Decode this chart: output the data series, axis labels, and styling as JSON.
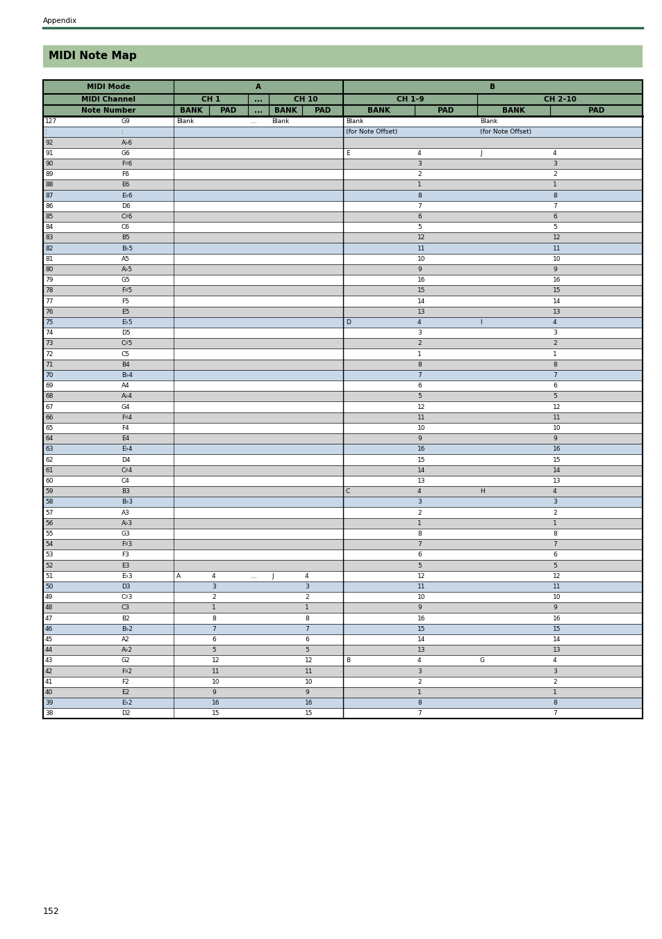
{
  "page_label": "Appendix",
  "section_title": "MIDI Note Map",
  "page_number": "152",
  "header_bg": "#8fad91",
  "title_bg": "#a8c5a0",
  "green_line": "#2e6b4f",
  "row_white": "#ffffff",
  "row_gray": "#d4d4d4",
  "row_blue": "#c8d8e8",
  "rows": [
    {
      "num": "127",
      "note": "G9",
      "ch1_bank": "Blank",
      "ch1_pad": "",
      "dots1": "...",
      "ch10_bank": "Blank",
      "ch10_pad": "",
      "b19_bank": "Blank",
      "b19_pad": "",
      "b210_bank": "Blank",
      "b210_pad": "",
      "bg": "white"
    },
    {
      "num": ":",
      "note": ":",
      "ch1_bank": "",
      "ch1_pad": "",
      "dots1": "",
      "ch10_bank": "",
      "ch10_pad": "",
      "b19_bank": "(for Note Offset)",
      "b19_pad": "",
      "b210_bank": "(for Note Offset)",
      "b210_pad": "",
      "bg": "blue"
    },
    {
      "num": "92",
      "note": "A♭6",
      "ch1_bank": "",
      "ch1_pad": "",
      "dots1": "",
      "ch10_bank": "",
      "ch10_pad": "",
      "b19_bank": "",
      "b19_pad": "",
      "b210_bank": "",
      "b210_pad": "",
      "bg": "gray"
    },
    {
      "num": "91",
      "note": "G6",
      "ch1_bank": "",
      "ch1_pad": "",
      "dots1": "",
      "ch10_bank": "",
      "ch10_pad": "",
      "b19_bank": "E",
      "b19_pad": "4",
      "b210_bank": "J",
      "b210_pad": "4",
      "bg": "white"
    },
    {
      "num": "90",
      "note": "F♯6",
      "ch1_bank": "",
      "ch1_pad": "",
      "dots1": "",
      "ch10_bank": "",
      "ch10_pad": "",
      "b19_bank": "",
      "b19_pad": "3",
      "b210_bank": "",
      "b210_pad": "3",
      "bg": "gray"
    },
    {
      "num": "89",
      "note": "F6",
      "ch1_bank": "",
      "ch1_pad": "",
      "dots1": "",
      "ch10_bank": "",
      "ch10_pad": "",
      "b19_bank": "",
      "b19_pad": "2",
      "b210_bank": "",
      "b210_pad": "2",
      "bg": "white"
    },
    {
      "num": "88",
      "note": "E6",
      "ch1_bank": "",
      "ch1_pad": "",
      "dots1": "",
      "ch10_bank": "",
      "ch10_pad": "",
      "b19_bank": "",
      "b19_pad": "1",
      "b210_bank": "",
      "b210_pad": "1",
      "bg": "gray"
    },
    {
      "num": "87",
      "note": "E♭6",
      "ch1_bank": "",
      "ch1_pad": "",
      "dots1": "",
      "ch10_bank": "",
      "ch10_pad": "",
      "b19_bank": "",
      "b19_pad": "8",
      "b210_bank": "",
      "b210_pad": "8",
      "bg": "blue"
    },
    {
      "num": "86",
      "note": "D6",
      "ch1_bank": "",
      "ch1_pad": "",
      "dots1": "",
      "ch10_bank": "",
      "ch10_pad": "",
      "b19_bank": "",
      "b19_pad": "7",
      "b210_bank": "",
      "b210_pad": "7",
      "bg": "white"
    },
    {
      "num": "85",
      "note": "C♯6",
      "ch1_bank": "",
      "ch1_pad": "",
      "dots1": "",
      "ch10_bank": "",
      "ch10_pad": "",
      "b19_bank": "",
      "b19_pad": "6",
      "b210_bank": "",
      "b210_pad": "6",
      "bg": "gray"
    },
    {
      "num": "84",
      "note": "C6",
      "ch1_bank": "",
      "ch1_pad": "",
      "dots1": "",
      "ch10_bank": "",
      "ch10_pad": "",
      "b19_bank": "",
      "b19_pad": "5",
      "b210_bank": "",
      "b210_pad": "5",
      "bg": "white"
    },
    {
      "num": "83",
      "note": "B5",
      "ch1_bank": "",
      "ch1_pad": "",
      "dots1": "",
      "ch10_bank": "",
      "ch10_pad": "",
      "b19_bank": "",
      "b19_pad": "12",
      "b210_bank": "",
      "b210_pad": "12",
      "bg": "gray"
    },
    {
      "num": "82",
      "note": "B♭5",
      "ch1_bank": "",
      "ch1_pad": "",
      "dots1": "",
      "ch10_bank": "",
      "ch10_pad": "",
      "b19_bank": "",
      "b19_pad": "11",
      "b210_bank": "",
      "b210_pad": "11",
      "bg": "blue"
    },
    {
      "num": "81",
      "note": "A5",
      "ch1_bank": "",
      "ch1_pad": "",
      "dots1": "",
      "ch10_bank": "",
      "ch10_pad": "",
      "b19_bank": "",
      "b19_pad": "10",
      "b210_bank": "",
      "b210_pad": "10",
      "bg": "white"
    },
    {
      "num": "80",
      "note": "A♭5",
      "ch1_bank": "",
      "ch1_pad": "",
      "dots1": "",
      "ch10_bank": "",
      "ch10_pad": "",
      "b19_bank": "",
      "b19_pad": "9",
      "b210_bank": "",
      "b210_pad": "9",
      "bg": "gray"
    },
    {
      "num": "79",
      "note": "G5",
      "ch1_bank": "",
      "ch1_pad": "",
      "dots1": "",
      "ch10_bank": "",
      "ch10_pad": "",
      "b19_bank": "",
      "b19_pad": "16",
      "b210_bank": "",
      "b210_pad": "16",
      "bg": "white"
    },
    {
      "num": "78",
      "note": "F♯5",
      "ch1_bank": "",
      "ch1_pad": "",
      "dots1": "",
      "ch10_bank": "",
      "ch10_pad": "",
      "b19_bank": "",
      "b19_pad": "15",
      "b210_bank": "",
      "b210_pad": "15",
      "bg": "gray"
    },
    {
      "num": "77",
      "note": "F5",
      "ch1_bank": "",
      "ch1_pad": "",
      "dots1": "",
      "ch10_bank": "",
      "ch10_pad": "",
      "b19_bank": "",
      "b19_pad": "14",
      "b210_bank": "",
      "b210_pad": "14",
      "bg": "white"
    },
    {
      "num": "76",
      "note": "E5",
      "ch1_bank": "",
      "ch1_pad": "",
      "dots1": "",
      "ch10_bank": "",
      "ch10_pad": "",
      "b19_bank": "",
      "b19_pad": "13",
      "b210_bank": "",
      "b210_pad": "13",
      "bg": "gray"
    },
    {
      "num": "75",
      "note": "E♭5",
      "ch1_bank": "",
      "ch1_pad": "",
      "dots1": "",
      "ch10_bank": "",
      "ch10_pad": "",
      "b19_bank": "D",
      "b19_pad": "4",
      "b210_bank": "I",
      "b210_pad": "4",
      "bg": "blue"
    },
    {
      "num": "74",
      "note": "D5",
      "ch1_bank": "",
      "ch1_pad": "",
      "dots1": "",
      "ch10_bank": "",
      "ch10_pad": "",
      "b19_bank": "",
      "b19_pad": "3",
      "b210_bank": "",
      "b210_pad": "3",
      "bg": "white"
    },
    {
      "num": "73",
      "note": "C♯5",
      "ch1_bank": "",
      "ch1_pad": "",
      "dots1": "",
      "ch10_bank": "",
      "ch10_pad": "",
      "b19_bank": "",
      "b19_pad": "2",
      "b210_bank": "",
      "b210_pad": "2",
      "bg": "gray"
    },
    {
      "num": "72",
      "note": "C5",
      "ch1_bank": "",
      "ch1_pad": "",
      "dots1": "",
      "ch10_bank": "",
      "ch10_pad": "",
      "b19_bank": "",
      "b19_pad": "1",
      "b210_bank": "",
      "b210_pad": "1",
      "bg": "white"
    },
    {
      "num": "71",
      "note": "B4",
      "ch1_bank": "",
      "ch1_pad": "",
      "dots1": "",
      "ch10_bank": "",
      "ch10_pad": "",
      "b19_bank": "",
      "b19_pad": "8",
      "b210_bank": "",
      "b210_pad": "8",
      "bg": "gray"
    },
    {
      "num": "70",
      "note": "B♭4",
      "ch1_bank": "",
      "ch1_pad": "",
      "dots1": "",
      "ch10_bank": "",
      "ch10_pad": "",
      "b19_bank": "",
      "b19_pad": "7",
      "b210_bank": "",
      "b210_pad": "7",
      "bg": "blue"
    },
    {
      "num": "69",
      "note": "A4",
      "ch1_bank": "",
      "ch1_pad": "",
      "dots1": "",
      "ch10_bank": "",
      "ch10_pad": "",
      "b19_bank": "",
      "b19_pad": "6",
      "b210_bank": "",
      "b210_pad": "6",
      "bg": "white"
    },
    {
      "num": "68",
      "note": "A♭4",
      "ch1_bank": "",
      "ch1_pad": "",
      "dots1": "",
      "ch10_bank": "",
      "ch10_pad": "",
      "b19_bank": "",
      "b19_pad": "5",
      "b210_bank": "",
      "b210_pad": "5",
      "bg": "gray"
    },
    {
      "num": "67",
      "note": "G4",
      "ch1_bank": "",
      "ch1_pad": "",
      "dots1": "",
      "ch10_bank": "",
      "ch10_pad": "",
      "b19_bank": "",
      "b19_pad": "12",
      "b210_bank": "",
      "b210_pad": "12",
      "bg": "white"
    },
    {
      "num": "66",
      "note": "F♯4",
      "ch1_bank": "",
      "ch1_pad": "",
      "dots1": "",
      "ch10_bank": "",
      "ch10_pad": "",
      "b19_bank": "",
      "b19_pad": "11",
      "b210_bank": "",
      "b210_pad": "11",
      "bg": "gray"
    },
    {
      "num": "65",
      "note": "F4",
      "ch1_bank": "",
      "ch1_pad": "",
      "dots1": "",
      "ch10_bank": "",
      "ch10_pad": "",
      "b19_bank": "",
      "b19_pad": "10",
      "b210_bank": "",
      "b210_pad": "10",
      "bg": "white"
    },
    {
      "num": "64",
      "note": "E4",
      "ch1_bank": "",
      "ch1_pad": "",
      "dots1": "",
      "ch10_bank": "",
      "ch10_pad": "",
      "b19_bank": "",
      "b19_pad": "9",
      "b210_bank": "",
      "b210_pad": "9",
      "bg": "gray"
    },
    {
      "num": "63",
      "note": "E♭4",
      "ch1_bank": "",
      "ch1_pad": "",
      "dots1": "",
      "ch10_bank": "",
      "ch10_pad": "",
      "b19_bank": "",
      "b19_pad": "16",
      "b210_bank": "",
      "b210_pad": "16",
      "bg": "blue"
    },
    {
      "num": "62",
      "note": "D4",
      "ch1_bank": "",
      "ch1_pad": "",
      "dots1": "",
      "ch10_bank": "",
      "ch10_pad": "",
      "b19_bank": "",
      "b19_pad": "15",
      "b210_bank": "",
      "b210_pad": "15",
      "bg": "white"
    },
    {
      "num": "61",
      "note": "C♯4",
      "ch1_bank": "",
      "ch1_pad": "",
      "dots1": "",
      "ch10_bank": "",
      "ch10_pad": "",
      "b19_bank": "",
      "b19_pad": "14",
      "b210_bank": "",
      "b210_pad": "14",
      "bg": "gray"
    },
    {
      "num": "60",
      "note": "C4",
      "ch1_bank": "",
      "ch1_pad": "",
      "dots1": "",
      "ch10_bank": "",
      "ch10_pad": "",
      "b19_bank": "",
      "b19_pad": "13",
      "b210_bank": "",
      "b210_pad": "13",
      "bg": "white"
    },
    {
      "num": "59",
      "note": "B3",
      "ch1_bank": "",
      "ch1_pad": "",
      "dots1": "",
      "ch10_bank": "",
      "ch10_pad": "",
      "b19_bank": "C",
      "b19_pad": "4",
      "b210_bank": "H",
      "b210_pad": "4",
      "bg": "gray"
    },
    {
      "num": "58",
      "note": "B♭3",
      "ch1_bank": "",
      "ch1_pad": "",
      "dots1": "",
      "ch10_bank": "",
      "ch10_pad": "",
      "b19_bank": "",
      "b19_pad": "3",
      "b210_bank": "",
      "b210_pad": "3",
      "bg": "blue"
    },
    {
      "num": "57",
      "note": "A3",
      "ch1_bank": "",
      "ch1_pad": "",
      "dots1": "",
      "ch10_bank": "",
      "ch10_pad": "",
      "b19_bank": "",
      "b19_pad": "2",
      "b210_bank": "",
      "b210_pad": "2",
      "bg": "white"
    },
    {
      "num": "56",
      "note": "A♭3",
      "ch1_bank": "",
      "ch1_pad": "",
      "dots1": "",
      "ch10_bank": "",
      "ch10_pad": "",
      "b19_bank": "",
      "b19_pad": "1",
      "b210_bank": "",
      "b210_pad": "1",
      "bg": "gray"
    },
    {
      "num": "55",
      "note": "G3",
      "ch1_bank": "",
      "ch1_pad": "",
      "dots1": "",
      "ch10_bank": "",
      "ch10_pad": "",
      "b19_bank": "",
      "b19_pad": "8",
      "b210_bank": "",
      "b210_pad": "8",
      "bg": "white"
    },
    {
      "num": "54",
      "note": "F♯3",
      "ch1_bank": "",
      "ch1_pad": "",
      "dots1": "",
      "ch10_bank": "",
      "ch10_pad": "",
      "b19_bank": "",
      "b19_pad": "7",
      "b210_bank": "",
      "b210_pad": "7",
      "bg": "gray"
    },
    {
      "num": "53",
      "note": "F3",
      "ch1_bank": "",
      "ch1_pad": "",
      "dots1": "",
      "ch10_bank": "",
      "ch10_pad": "",
      "b19_bank": "",
      "b19_pad": "6",
      "b210_bank": "",
      "b210_pad": "6",
      "bg": "white"
    },
    {
      "num": "52",
      "note": "E3",
      "ch1_bank": "",
      "ch1_pad": "",
      "dots1": "",
      "ch10_bank": "",
      "ch10_pad": "",
      "b19_bank": "",
      "b19_pad": "5",
      "b210_bank": "",
      "b210_pad": "5",
      "bg": "gray"
    },
    {
      "num": "51",
      "note": "E♭3",
      "ch1_bank": "A",
      "ch1_pad": "4",
      "dots1": "...",
      "ch10_bank": "J",
      "ch10_pad": "4",
      "b19_bank": "",
      "b19_pad": "12",
      "b210_bank": "",
      "b210_pad": "12",
      "bg": "white"
    },
    {
      "num": "50",
      "note": "D3",
      "ch1_bank": "",
      "ch1_pad": "3",
      "dots1": "",
      "ch10_bank": "",
      "ch10_pad": "3",
      "b19_bank": "",
      "b19_pad": "11",
      "b210_bank": "",
      "b210_pad": "11",
      "bg": "blue"
    },
    {
      "num": "49",
      "note": "C♯3",
      "ch1_bank": "",
      "ch1_pad": "2",
      "dots1": "",
      "ch10_bank": "",
      "ch10_pad": "2",
      "b19_bank": "",
      "b19_pad": "10",
      "b210_bank": "",
      "b210_pad": "10",
      "bg": "white"
    },
    {
      "num": "48",
      "note": "C3",
      "ch1_bank": "",
      "ch1_pad": "1",
      "dots1": "",
      "ch10_bank": "",
      "ch10_pad": "1",
      "b19_bank": "",
      "b19_pad": "9",
      "b210_bank": "",
      "b210_pad": "9",
      "bg": "gray"
    },
    {
      "num": "47",
      "note": "B2",
      "ch1_bank": "",
      "ch1_pad": "8",
      "dots1": "",
      "ch10_bank": "",
      "ch10_pad": "8",
      "b19_bank": "",
      "b19_pad": "16",
      "b210_bank": "",
      "b210_pad": "16",
      "bg": "white"
    },
    {
      "num": "46",
      "note": "B♭2",
      "ch1_bank": "",
      "ch1_pad": "7",
      "dots1": "",
      "ch10_bank": "",
      "ch10_pad": "7",
      "b19_bank": "",
      "b19_pad": "15",
      "b210_bank": "",
      "b210_pad": "15",
      "bg": "blue"
    },
    {
      "num": "45",
      "note": "A2",
      "ch1_bank": "",
      "ch1_pad": "6",
      "dots1": "",
      "ch10_bank": "",
      "ch10_pad": "6",
      "b19_bank": "",
      "b19_pad": "14",
      "b210_bank": "",
      "b210_pad": "14",
      "bg": "white"
    },
    {
      "num": "44",
      "note": "A♭2",
      "ch1_bank": "",
      "ch1_pad": "5",
      "dots1": "",
      "ch10_bank": "",
      "ch10_pad": "5",
      "b19_bank": "",
      "b19_pad": "13",
      "b210_bank": "",
      "b210_pad": "13",
      "bg": "gray"
    },
    {
      "num": "43",
      "note": "G2",
      "ch1_bank": "",
      "ch1_pad": "12",
      "dots1": "",
      "ch10_bank": "",
      "ch10_pad": "12",
      "b19_bank": "B",
      "b19_pad": "4",
      "b210_bank": "G",
      "b210_pad": "4",
      "bg": "white"
    },
    {
      "num": "42",
      "note": "F♯2",
      "ch1_bank": "",
      "ch1_pad": "11",
      "dots1": "",
      "ch10_bank": "",
      "ch10_pad": "11",
      "b19_bank": "",
      "b19_pad": "3",
      "b210_bank": "",
      "b210_pad": "3",
      "bg": "gray"
    },
    {
      "num": "41",
      "note": "F2",
      "ch1_bank": "",
      "ch1_pad": "10",
      "dots1": "",
      "ch10_bank": "",
      "ch10_pad": "10",
      "b19_bank": "",
      "b19_pad": "2",
      "b210_bank": "",
      "b210_pad": "2",
      "bg": "white"
    },
    {
      "num": "40",
      "note": "E2",
      "ch1_bank": "",
      "ch1_pad": "9",
      "dots1": "",
      "ch10_bank": "",
      "ch10_pad": "9",
      "b19_bank": "",
      "b19_pad": "1",
      "b210_bank": "",
      "b210_pad": "1",
      "bg": "gray"
    },
    {
      "num": "39",
      "note": "E♭2",
      "ch1_bank": "",
      "ch1_pad": "16",
      "dots1": "",
      "ch10_bank": "",
      "ch10_pad": "16",
      "b19_bank": "",
      "b19_pad": "8",
      "b210_bank": "",
      "b210_pad": "8",
      "bg": "blue"
    },
    {
      "num": "38",
      "note": "D2",
      "ch1_bank": "",
      "ch1_pad": "15",
      "dots1": "",
      "ch10_bank": "",
      "ch10_pad": "15",
      "b19_bank": "",
      "b19_pad": "7",
      "b210_bank": "",
      "b210_pad": "7",
      "bg": "white"
    }
  ]
}
